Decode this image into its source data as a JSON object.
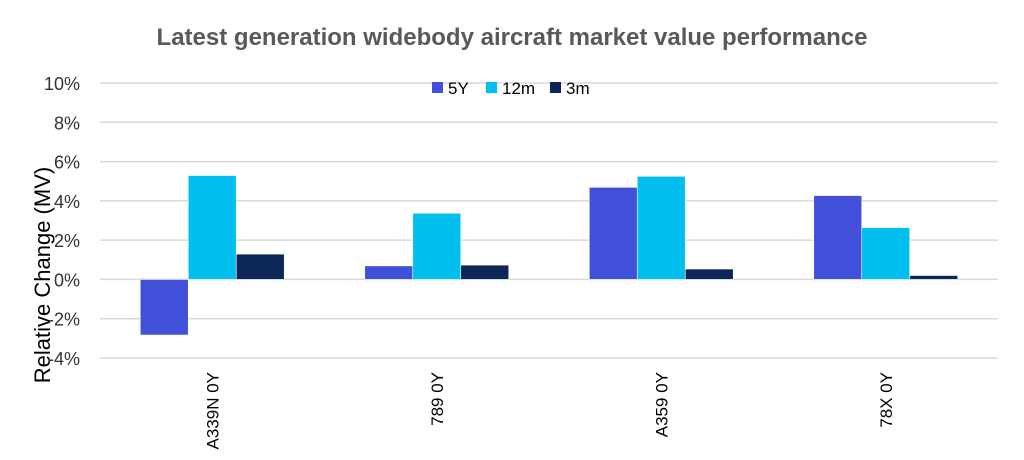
{
  "chart_data": {
    "type": "bar",
    "title": "Latest generation widebody aircraft market value performance",
    "xlabel": "",
    "ylabel": "Relative Change (MV)",
    "categories": [
      "A339N 0Y",
      "789 0Y",
      "A359 0Y",
      "78X 0Y"
    ],
    "series": [
      {
        "name": "5Y",
        "color": "#4050D8",
        "values": [
          -2.83,
          0.69,
          4.69,
          4.27
        ]
      },
      {
        "name": "12m",
        "color": "#00BFEE",
        "values": [
          5.29,
          3.37,
          5.25,
          2.64
        ]
      },
      {
        "name": "3m",
        "color": "#0C2657",
        "values": [
          1.29,
          0.73,
          0.53,
          0.2
        ]
      }
    ],
    "ylim": [
      -4,
      10
    ],
    "yticks": [
      "-4%",
      "-2%",
      "0%",
      "2%",
      "4%",
      "6%",
      "8%",
      "10%"
    ],
    "grid": true,
    "legend": "top-center"
  }
}
